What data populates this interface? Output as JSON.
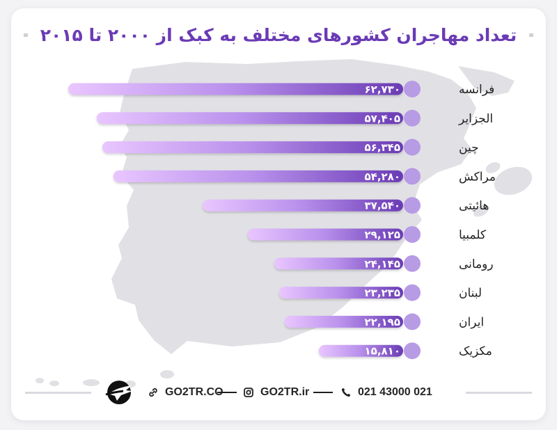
{
  "title": "تعداد مهاجران کشورهای مختلف به کبک از ۲۰۰۰ تا ۲۰۱۵",
  "chart_data": {
    "type": "bar",
    "orientation": "horizontal",
    "title": "تعداد مهاجران کشورهای مختلف به کبک از ۲۰۰۰ تا ۲۰۱۵",
    "categories": [
      "فرانسه",
      "الجزایر",
      "چین",
      "مراکش",
      "هائیتی",
      "کلمبیا",
      "رومانی",
      "لبنان",
      "ایران",
      "مکزیک"
    ],
    "values": [
      62730,
      57405,
      56345,
      54280,
      37540,
      29125,
      24145,
      23235,
      22195,
      15810
    ],
    "value_labels": [
      "۶۲,۷۳۰",
      "۵۷,۴۰۵",
      "۵۶,۳۴۵",
      "۵۴,۲۸۰",
      "۳۷,۵۴۰",
      "۲۹,۱۲۵",
      "۲۴,۱۴۵",
      "۲۳,۲۳۵",
      "۲۲,۱۹۵",
      "۱۵,۸۱۰"
    ],
    "xlabel": "",
    "ylabel": "",
    "grid": false,
    "colors": {
      "bar_start": "#e9c6ff",
      "bar_end": "#6a3bb5",
      "knob": "#b79be4",
      "label": "#222222",
      "value_text": "#ffffff"
    }
  },
  "footer": {
    "phone": "021 43000 021",
    "instagram": "GO2TR.ir",
    "website": "GO2TR.CO",
    "phone_icon": "phone-icon",
    "instagram_icon": "instagram-icon",
    "link_icon": "link-icon",
    "logo_icon": "plane-logo-icon"
  },
  "colors": {
    "title": "#6a3bb5",
    "map": "#e1e1e5",
    "dashes": "#cfcfd6"
  }
}
